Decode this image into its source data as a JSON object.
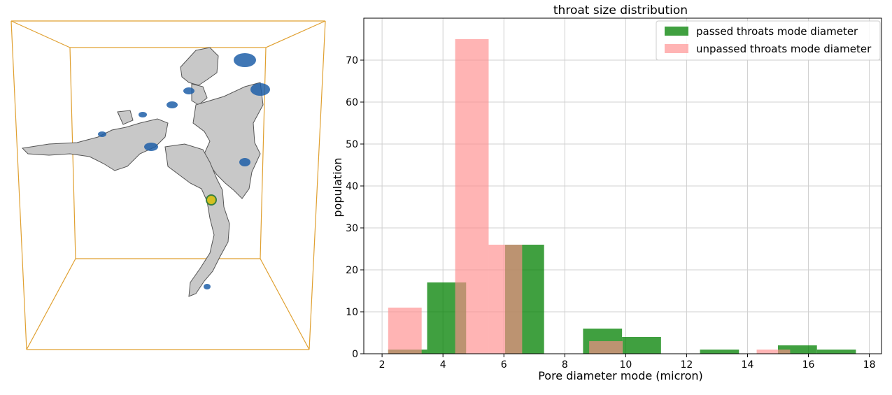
{
  "chart_data": {
    "type": "bar",
    "title": "throat size distribution",
    "xlabel": "Pore diameter mode (micron)",
    "ylabel": "population",
    "xlim": [
      1.4,
      18.4
    ],
    "ylim": [
      0,
      80
    ],
    "xticks": [
      2,
      4,
      6,
      8,
      10,
      12,
      14,
      16,
      18
    ],
    "yticks": [
      0,
      10,
      20,
      30,
      40,
      50,
      60,
      70
    ],
    "grid": true,
    "legend_position": "top-right",
    "series": [
      {
        "name": "passed throats mode diameter",
        "color": "#008000",
        "opacity": 0.75,
        "bins": [
          {
            "x0": 2.2,
            "x1": 3.48,
            "value": 1
          },
          {
            "x0": 3.48,
            "x1": 4.76,
            "value": 17
          },
          {
            "x0": 4.76,
            "x1": 6.04,
            "value": 0
          },
          {
            "x0": 6.04,
            "x1": 7.32,
            "value": 26
          },
          {
            "x0": 7.32,
            "x1": 8.6,
            "value": 0
          },
          {
            "x0": 8.6,
            "x1": 9.88,
            "value": 6
          },
          {
            "x0": 9.88,
            "x1": 11.16,
            "value": 4
          },
          {
            "x0": 11.16,
            "x1": 12.44,
            "value": 0
          },
          {
            "x0": 12.44,
            "x1": 13.72,
            "value": 1
          },
          {
            "x0": 13.72,
            "x1": 15.0,
            "value": 0
          },
          {
            "x0": 15.0,
            "x1": 16.28,
            "value": 2
          },
          {
            "x0": 16.28,
            "x1": 17.56,
            "value": 1
          }
        ]
      },
      {
        "name": "unpassed throats mode diameter",
        "color": "#ff8c8c",
        "opacity": 0.65,
        "bins": [
          {
            "x0": 2.2,
            "x1": 3.3,
            "value": 11
          },
          {
            "x0": 3.3,
            "x1": 4.4,
            "value": 0
          },
          {
            "x0": 4.4,
            "x1": 5.5,
            "value": 75
          },
          {
            "x0": 5.5,
            "x1": 6.6,
            "value": 26
          },
          {
            "x0": 6.6,
            "x1": 7.7,
            "value": 0
          },
          {
            "x0": 7.7,
            "x1": 8.8,
            "value": 0
          },
          {
            "x0": 8.8,
            "x1": 9.9,
            "value": 3
          },
          {
            "x0": 9.9,
            "x1": 11.0,
            "value": 0
          },
          {
            "x0": 11.0,
            "x1": 12.1,
            "value": 0
          },
          {
            "x0": 12.1,
            "x1": 13.2,
            "value": 0
          },
          {
            "x0": 13.2,
            "x1": 14.3,
            "value": 0
          },
          {
            "x0": 14.3,
            "x1": 15.4,
            "value": 1
          }
        ]
      }
    ]
  },
  "render": {
    "frame_color": "#e0a030",
    "surface_color": "#c8c8c8",
    "accent_color": "#1f5fa8"
  }
}
